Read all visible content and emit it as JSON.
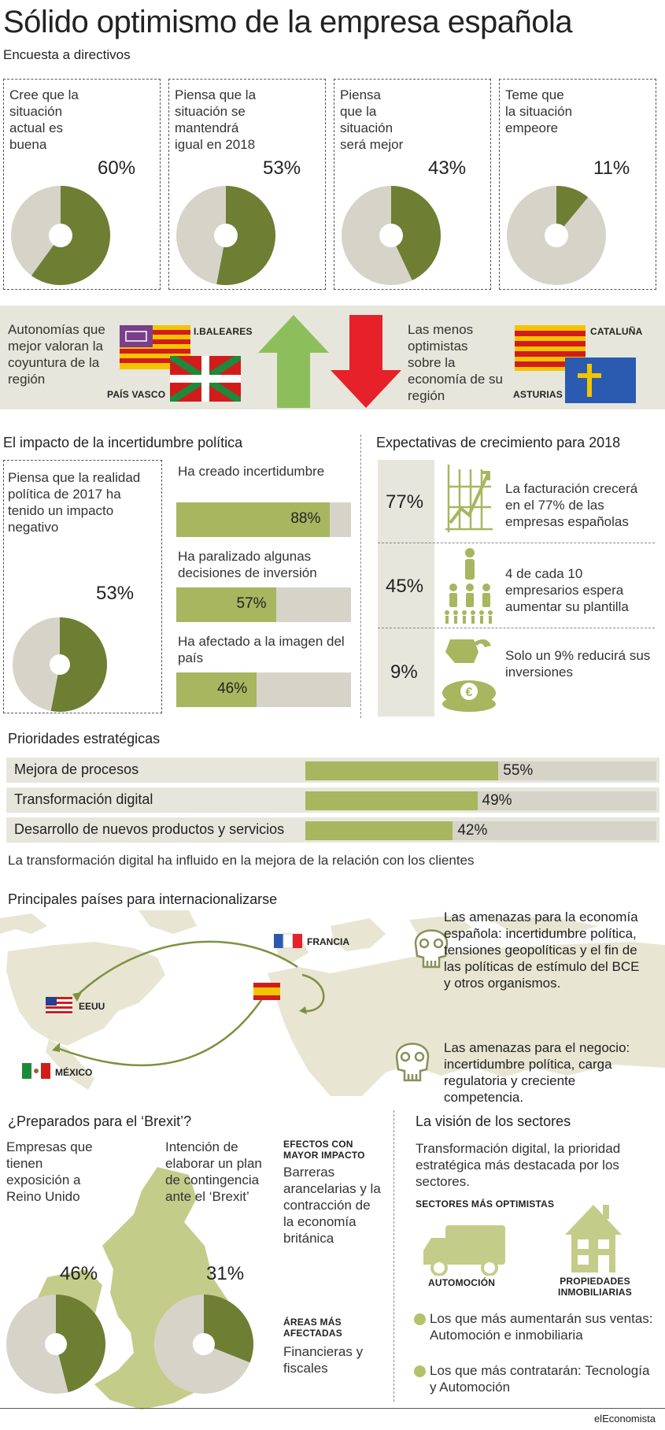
{
  "header": {
    "title": "Sólido optimismo de la empresa española",
    "subtitle": "Encuesta a directivos"
  },
  "colors": {
    "olive": "#6e7e33",
    "olive_light": "#a7b65f",
    "grey": "#d6d4c8",
    "green_arrow": "#8cbf5b",
    "red_arrow": "#e62129"
  },
  "chart_data": [
    {
      "type": "pie",
      "title": "Encuesta a directivos",
      "slices": [
        {
          "label": "Cree que la situación actual es buena",
          "value": 60
        },
        {
          "label": "Piensa que la situación se mantendrá igual en 2018",
          "value": 53
        },
        {
          "label": "Piensa que la situación será mejor",
          "value": 43
        },
        {
          "label": "Teme que la situación empeore",
          "value": 11
        }
      ]
    },
    {
      "type": "bar",
      "title": "El impacto de la incertidumbre política",
      "categories": [
        "Ha creado incertidumbre",
        "Ha paralizado algunas decisiones de inversión",
        "Ha afectado a la imagen del país"
      ],
      "values": [
        88,
        57,
        46
      ],
      "ylim": [
        0,
        100
      ]
    },
    {
      "type": "bar",
      "title": "Prioridades estratégicas",
      "categories": [
        "Mejora de procesos",
        "Transformación digital",
        "Desarrollo de nuevos productos y servicios"
      ],
      "values": [
        55,
        49,
        42
      ],
      "ylim": [
        0,
        100
      ]
    }
  ],
  "survey": [
    {
      "label_lines": [
        "Cree que la",
        "situación",
        "actual es",
        "buena"
      ],
      "value": 60,
      "pct": "60%"
    },
    {
      "label_lines": [
        "Piensa que la",
        "situación se",
        "mantendrá",
        "igual en 2018"
      ],
      "value": 53,
      "pct": "53%"
    },
    {
      "label_lines": [
        "Piensa",
        "que la",
        "situación",
        "será mejor"
      ],
      "value": 43,
      "pct": "43%"
    },
    {
      "label_lines": [
        "Teme que",
        "la situación",
        "empeore"
      ],
      "value": 11,
      "pct": "11%"
    }
  ],
  "regions": {
    "best_text": "Autonomías que mejor valoran la coyuntura de la región",
    "best": [
      "I.BALEARES",
      "PAÍS VASCO"
    ],
    "worst_text": "Las menos optimistas sobre la economía de su región",
    "worst": [
      "CATALUÑA",
      "ASTURIAS"
    ]
  },
  "politics": {
    "title": "El impacto de la incertidumbre política",
    "box_text": "Piensa que la realidad política de 2017 ha tenido un impacto negativo",
    "box_value": 53,
    "box_pct": "53%",
    "bars": [
      {
        "label": "Ha creado incertidumbre",
        "value": 88,
        "pct": "88%"
      },
      {
        "label": "Ha paralizado algunas decisiones de inversión",
        "value": 57,
        "pct": "57%"
      },
      {
        "label": "Ha afectado a la imagen del país",
        "value": 46,
        "pct": "46%"
      }
    ]
  },
  "growth": {
    "title": "Expectativas de crecimiento para 2018",
    "rows": [
      {
        "pct": "77%",
        "text": "La facturación crecerá en el 77% de las empresas españolas"
      },
      {
        "pct": "45%",
        "text": "4 de cada 10 empresarios espera aumentar su plantilla"
      },
      {
        "pct": "9%",
        "text": "Solo un 9% reducirá sus inversiones"
      }
    ]
  },
  "priorities": {
    "title": "Prioridades estratégicas",
    "rows": [
      {
        "label": "Mejora de procesos",
        "value": 55,
        "pct": "55%"
      },
      {
        "label": "Transformación digital",
        "value": 49,
        "pct": "49%"
      },
      {
        "label": "Desarrollo de nuevos productos y servicios",
        "value": 42,
        "pct": "42%"
      }
    ],
    "note": "La transformación digital ha influido en la mejora de la relación con los clientes"
  },
  "countries": {
    "title": "Principales países para internacionalizarse",
    "labels": [
      "FRANCIA",
      "EEUU",
      "MÉXICO"
    ],
    "threat_economy": "Las amenazas para la economía española: incertidumbre política, tensiones geopolíticas y el fin de las políticas de estímulo del BCE y otros organismos.",
    "threat_business": "Las amenazas para el negocio: incertidumbre política, carga regulatoria y creciente competencia."
  },
  "brexit": {
    "title": "¿Preparados para el ‘Brexit’?",
    "left_text": "Empresas que tienen exposición a Reino Unido",
    "left_value": 46,
    "left_pct": "46%",
    "mid_text": "Intención de elaborar un plan de contingencia ante el ‘Brexit’",
    "mid_value": 31,
    "mid_pct": "31%",
    "effects_title": "EFECTOS CON MAYOR IMPACTO",
    "effects_text": "Barreras arancelarias y la contracción de la economía británica",
    "areas_title": "ÁREAS MÁS AFECTADAS",
    "areas_text": "Financieras y fiscales"
  },
  "sectors": {
    "title": "La visión de los sectores",
    "intro": "Transformación digital, la prioridad estratégica más destacada por los sectores.",
    "optimists_title": "SECTORES MÁS OPTIMISTAS",
    "icon_labels": [
      "AUTOMOCIÓN",
      "PROPIEDADES INMOBILIARIAS"
    ],
    "bullets": [
      "Los que más aumentarán sus ventas: Automoción e inmobiliaria",
      "Los que más contratarán: Tecnología y Automoción"
    ]
  },
  "footer": {
    "brand": "elEconomista"
  }
}
